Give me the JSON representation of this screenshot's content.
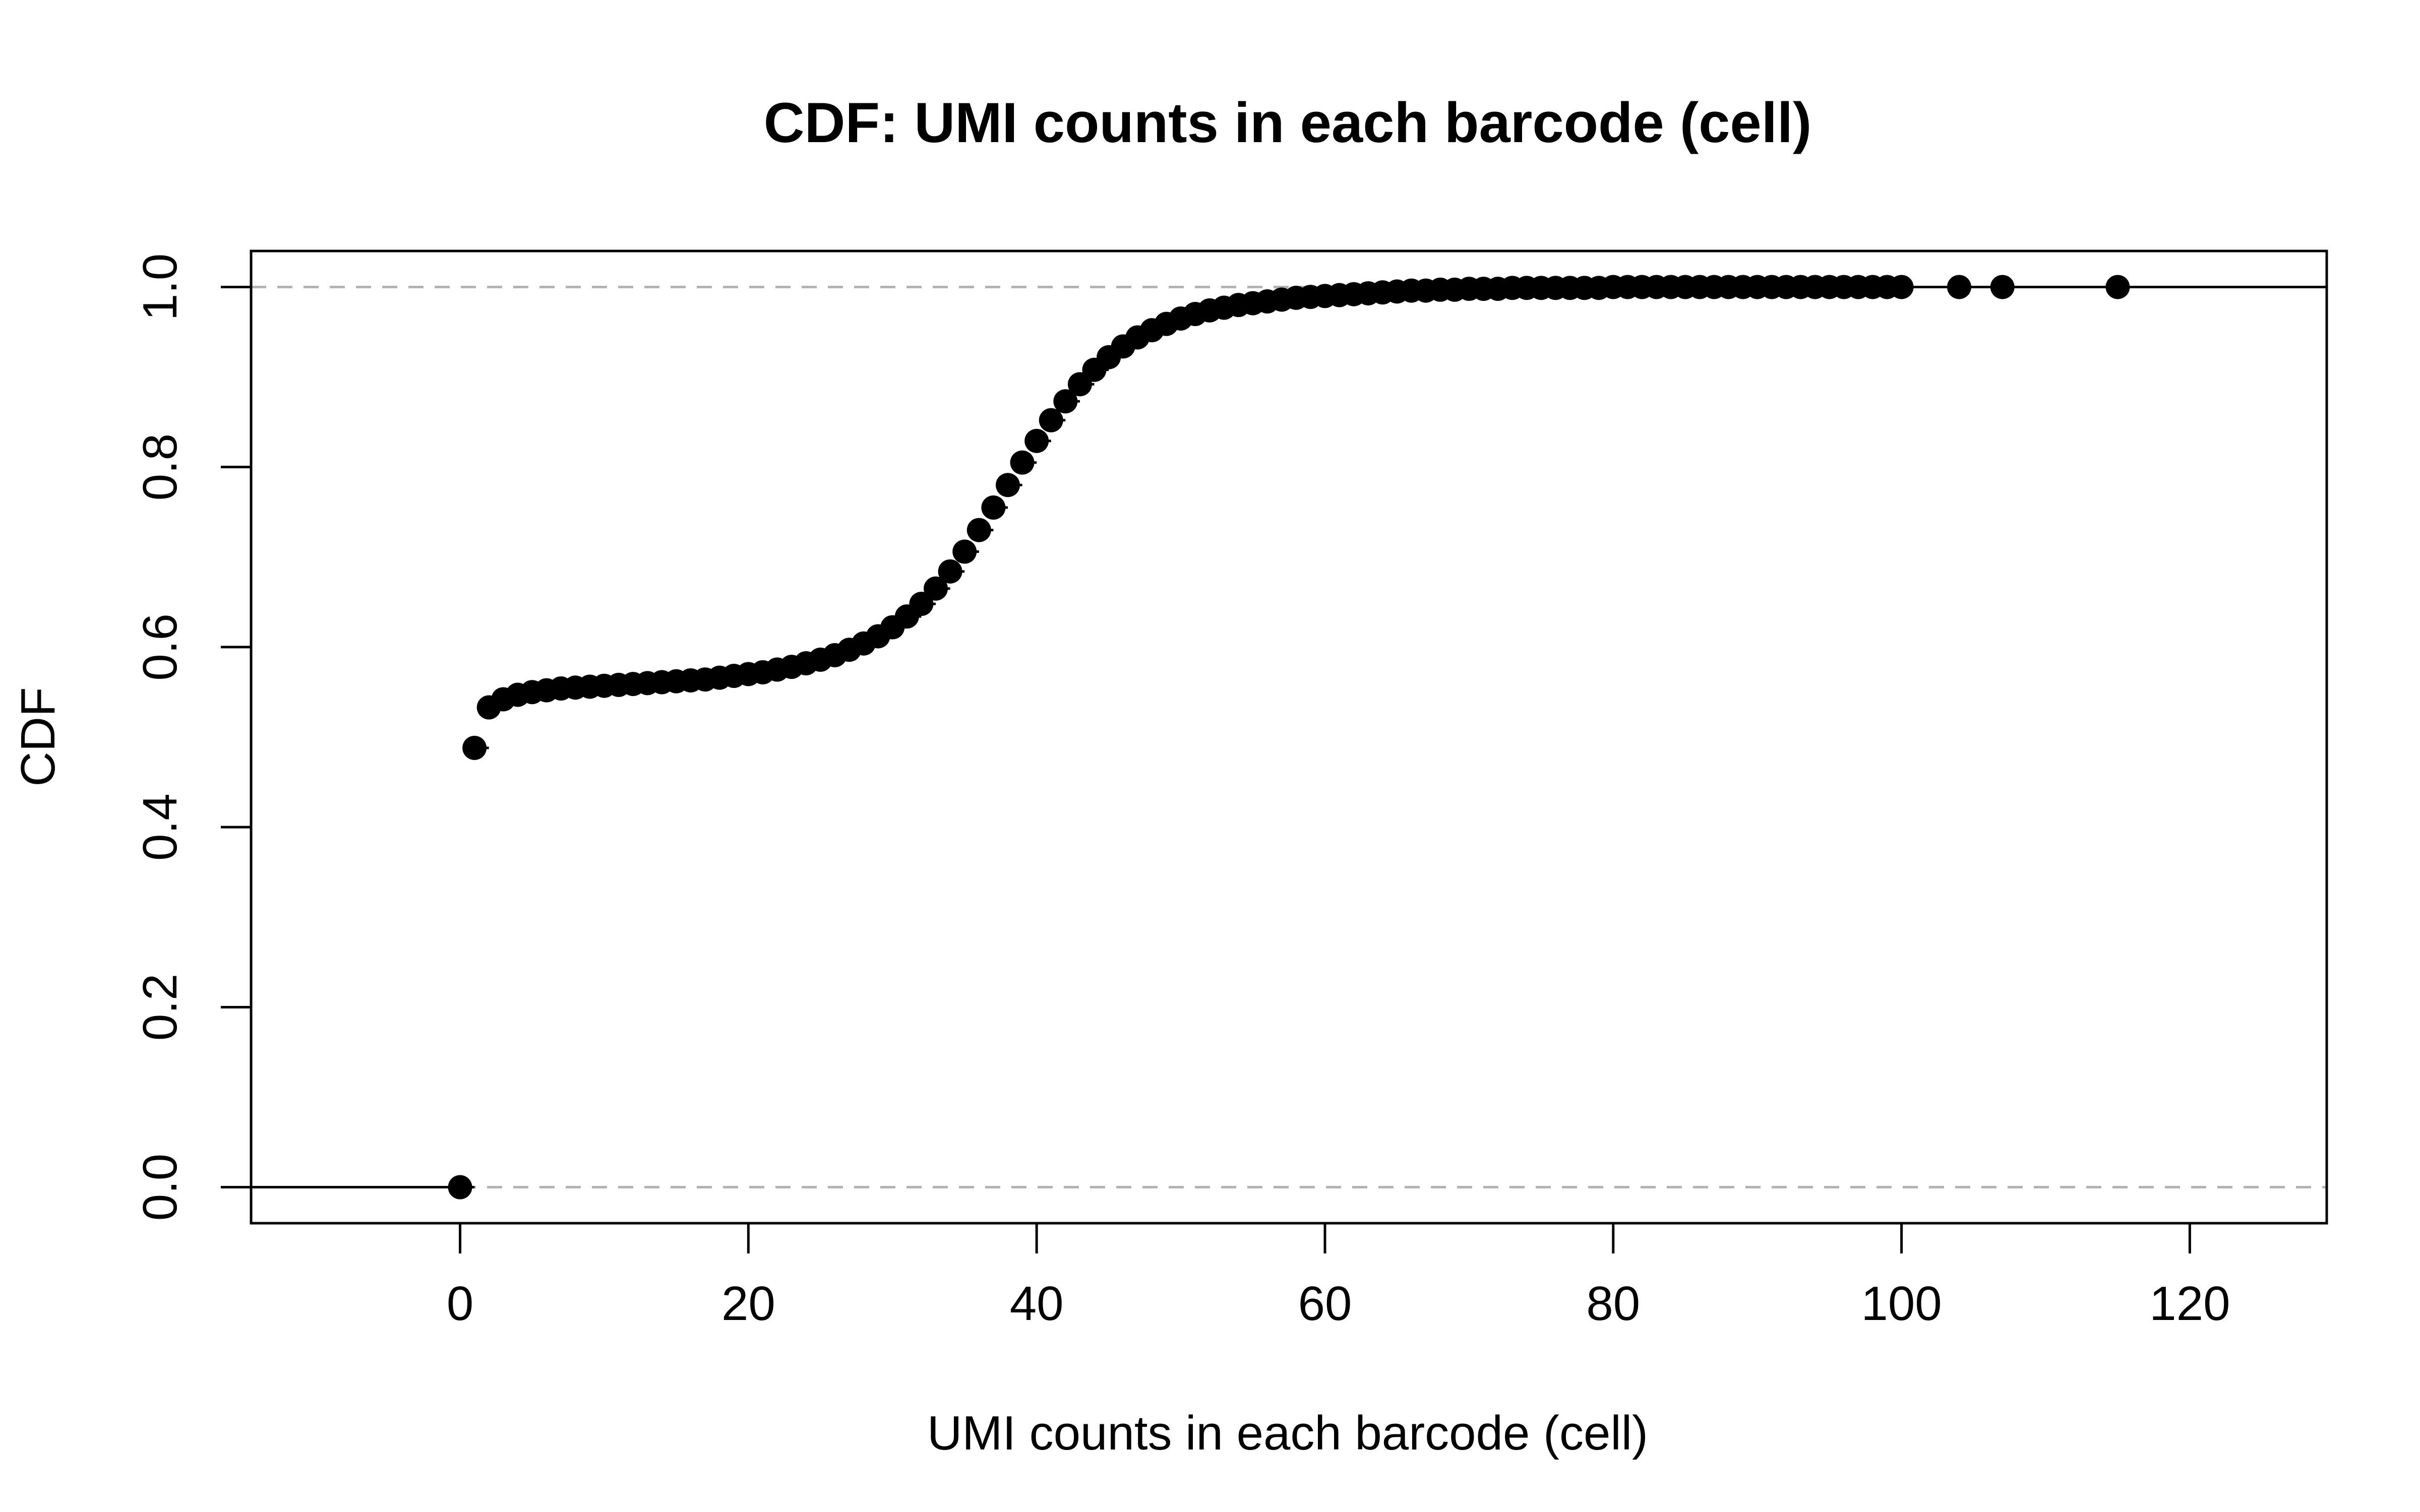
{
  "chart_data": {
    "type": "scatter",
    "title": "CDF: UMI counts in each barcode (cell)",
    "xlabel": "UMI counts in each barcode (cell)",
    "ylabel": "CDF",
    "xlim": [
      -14.5,
      129.5
    ],
    "ylim": [
      -0.04,
      1.04
    ],
    "x_ticks": [
      0,
      20,
      40,
      60,
      80,
      100,
      120
    ],
    "y_ticks": [
      0.0,
      0.2,
      0.4,
      0.6,
      0.8,
      1.0
    ],
    "x_tick_labels": [
      "0",
      "20",
      "40",
      "60",
      "80",
      "100",
      "120"
    ],
    "y_tick_labels": [
      "0.0",
      "0.2",
      "0.4",
      "0.6",
      "0.8",
      "1.0"
    ],
    "reference_lines_y": [
      0.0,
      1.0
    ],
    "grid": false,
    "legend": "none",
    "point_color": "#000000",
    "reference_line_color": "#b3b3b3",
    "series": [
      {
        "x": [
          0,
          1,
          2,
          3,
          4,
          5,
          6,
          7,
          8,
          9,
          10,
          11,
          12,
          13,
          14,
          15,
          16,
          17,
          18,
          19,
          20,
          21,
          22,
          23,
          24,
          25,
          26,
          27,
          28,
          29,
          30,
          31,
          32,
          33,
          34,
          35,
          36,
          37,
          38,
          39,
          40,
          41,
          42,
          43,
          44,
          45,
          46,
          47,
          48,
          49,
          50,
          51,
          52,
          53,
          54,
          55,
          56,
          57,
          58,
          59,
          60,
          61,
          62,
          63,
          64,
          65,
          66,
          67,
          68,
          69,
          70,
          71,
          72,
          73,
          74,
          75,
          76,
          77,
          78,
          79,
          80,
          81,
          82,
          83,
          84,
          85,
          86,
          87,
          88,
          89,
          90,
          91,
          92,
          93,
          94,
          95,
          96,
          97,
          98,
          99,
          100,
          104,
          107,
          115
        ],
        "y": [
          0.0,
          0.488,
          0.533,
          0.542,
          0.547,
          0.55,
          0.552,
          0.554,
          0.555,
          0.556,
          0.557,
          0.558,
          0.559,
          0.56,
          0.561,
          0.562,
          0.563,
          0.564,
          0.566,
          0.568,
          0.57,
          0.572,
          0.575,
          0.578,
          0.582,
          0.586,
          0.591,
          0.597,
          0.604,
          0.612,
          0.622,
          0.634,
          0.648,
          0.665,
          0.684,
          0.706,
          0.73,
          0.755,
          0.78,
          0.805,
          0.829,
          0.852,
          0.873,
          0.892,
          0.908,
          0.922,
          0.934,
          0.944,
          0.952,
          0.959,
          0.965,
          0.97,
          0.974,
          0.977,
          0.98,
          0.982,
          0.984,
          0.986,
          0.988,
          0.989,
          0.99,
          0.991,
          0.992,
          0.993,
          0.994,
          0.995,
          0.996,
          0.996,
          0.997,
          0.997,
          0.998,
          0.998,
          0.998,
          0.999,
          0.999,
          0.999,
          0.999,
          0.999,
          0.999,
          0.999,
          1.0,
          1.0,
          1.0,
          1.0,
          1.0,
          1.0,
          1.0,
          1.0,
          1.0,
          1.0,
          1.0,
          1.0,
          1.0,
          1.0,
          1.0,
          1.0,
          1.0,
          1.0,
          1.0,
          1.0,
          1.0,
          1.0,
          1.0,
          1.0
        ]
      }
    ]
  }
}
